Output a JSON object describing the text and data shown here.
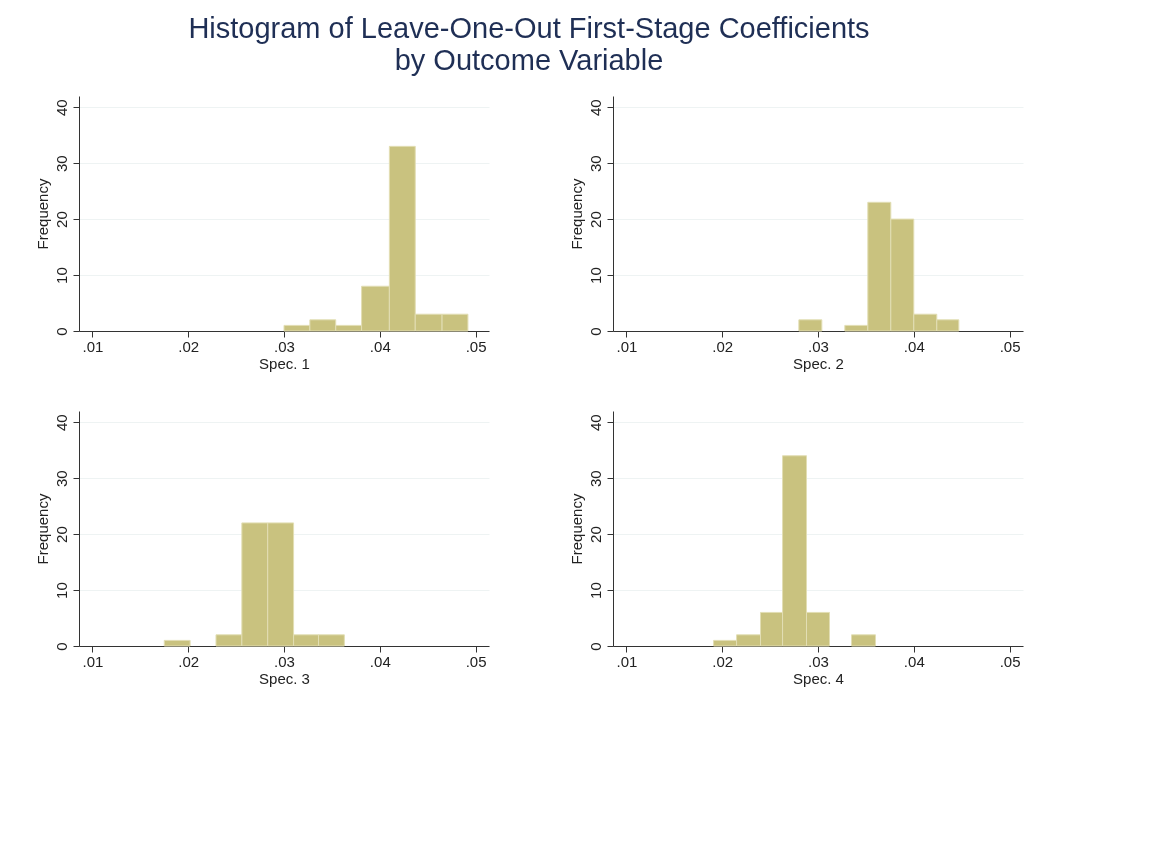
{
  "chart_data": [
    {
      "type": "histogram",
      "title": "Histogram of Leave-One-Out First-Stage Coefficients\nby  Outcome Variable",
      "xlabel": "Spec. 1",
      "ylabel": "Frequency",
      "color": "#c9c27f",
      "bins": [
        0.03,
        0.0327,
        0.0354,
        0.0381,
        0.041,
        0.0437,
        0.0465,
        0.0492
      ],
      "values": [
        1,
        2,
        1,
        8,
        33,
        3,
        3
      ],
      "xlim": [
        0.0086,
        0.0514
      ],
      "ylim": [
        0,
        42
      ],
      "xticks": [
        {
          "value": 0.01,
          "label": ".01"
        },
        {
          "value": 0.02,
          "label": ".02"
        },
        {
          "value": 0.03,
          "label": ".03"
        },
        {
          "value": 0.04,
          "label": ".04"
        },
        {
          "value": 0.05,
          "label": ".05"
        }
      ],
      "yticks": [
        0,
        10,
        20,
        30,
        40
      ],
      "grid": "y"
    },
    {
      "type": "histogram",
      "xlabel": "Spec. 2",
      "ylabel": "Frequency",
      "color": "#c9c27f",
      "bins": [
        0.028,
        0.0304,
        0.0328,
        0.0352,
        0.0376,
        0.04,
        0.0424,
        0.0447
      ],
      "values": [
        2,
        0,
        1,
        23,
        20,
        3,
        2
      ],
      "xlim": [
        0.0086,
        0.0514
      ],
      "ylim": [
        0,
        42
      ],
      "xticks": [
        {
          "value": 0.01,
          "label": ".01"
        },
        {
          "value": 0.02,
          "label": ".02"
        },
        {
          "value": 0.03,
          "label": ".03"
        },
        {
          "value": 0.04,
          "label": ".04"
        },
        {
          "value": 0.05,
          "label": ".05"
        }
      ],
      "yticks": [
        0,
        10,
        20,
        30,
        40
      ],
      "grid": "y"
    },
    {
      "type": "histogram",
      "xlabel": "Spec. 3",
      "ylabel": "Frequency",
      "color": "#c9c27f",
      "bins": [
        0.0175,
        0.0202,
        0.0229,
        0.0256,
        0.0283,
        0.031,
        0.0336,
        0.0363
      ],
      "values": [
        1,
        0,
        2,
        22,
        22,
        2,
        2
      ],
      "xlim": [
        0.0086,
        0.0514
      ],
      "ylim": [
        0,
        42
      ],
      "xticks": [
        {
          "value": 0.01,
          "label": ".01"
        },
        {
          "value": 0.02,
          "label": ".02"
        },
        {
          "value": 0.03,
          "label": ".03"
        },
        {
          "value": 0.04,
          "label": ".04"
        },
        {
          "value": 0.05,
          "label": ".05"
        }
      ],
      "yticks": [
        0,
        10,
        20,
        30,
        40
      ],
      "grid": "y"
    },
    {
      "type": "histogram",
      "xlabel": "Spec. 4",
      "ylabel": "Frequency",
      "color": "#c9c27f",
      "bins": [
        0.0191,
        0.0215,
        0.024,
        0.0263,
        0.0288,
        0.0312,
        0.0335,
        0.036
      ],
      "values": [
        1,
        2,
        6,
        34,
        6,
        0,
        2
      ],
      "xlim": [
        0.0086,
        0.0514
      ],
      "ylim": [
        0,
        42
      ],
      "xticks": [
        {
          "value": 0.01,
          "label": ".01"
        },
        {
          "value": 0.02,
          "label": ".02"
        },
        {
          "value": 0.03,
          "label": ".03"
        },
        {
          "value": 0.04,
          "label": ".04"
        },
        {
          "value": 0.05,
          "label": ".05"
        }
      ],
      "yticks": [
        0,
        10,
        20,
        30,
        40
      ],
      "grid": "y"
    }
  ]
}
